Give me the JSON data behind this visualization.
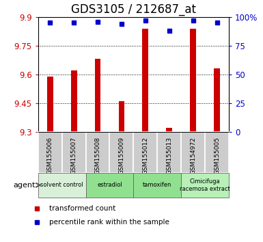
{
  "title": "GDS3105 / 212687_at",
  "samples": [
    "GSM155006",
    "GSM155007",
    "GSM155008",
    "GSM155009",
    "GSM155012",
    "GSM155013",
    "GSM154972",
    "GSM155005"
  ],
  "bar_values": [
    9.59,
    9.62,
    9.68,
    9.46,
    9.84,
    9.32,
    9.84,
    9.63
  ],
  "percentile_values": [
    95,
    95,
    96,
    94,
    97,
    88,
    97,
    95
  ],
  "ylim_left": [
    9.3,
    9.9
  ],
  "ylim_right": [
    0,
    100
  ],
  "yticks_left": [
    9.3,
    9.45,
    9.6,
    9.75,
    9.9
  ],
  "yticks_right": [
    0,
    25,
    50,
    75,
    100
  ],
  "bar_color": "#cc0000",
  "marker_color": "#0000cc",
  "background_plot": "#ffffff",
  "sample_box_color": "#cccccc",
  "left_label_color": "#cc0000",
  "right_label_color": "#0000cc",
  "title_fontsize": 12,
  "tick_fontsize": 8.5,
  "bar_width": 0.25,
  "group_defs": [
    {
      "start": 0,
      "end": 2,
      "label": "solvent control",
      "color": "#d8f0d8"
    },
    {
      "start": 2,
      "end": 4,
      "label": "estradiol",
      "color": "#90e090"
    },
    {
      "start": 4,
      "end": 6,
      "label": "tamoxifen",
      "color": "#90e090"
    },
    {
      "start": 6,
      "end": 8,
      "label": "Cimicifuga\nracemosa extract",
      "color": "#b8f0b8"
    }
  ],
  "legend_items": [
    {
      "label": "transformed count",
      "color": "#cc0000"
    },
    {
      "label": "percentile rank within the sample",
      "color": "#0000cc"
    }
  ]
}
